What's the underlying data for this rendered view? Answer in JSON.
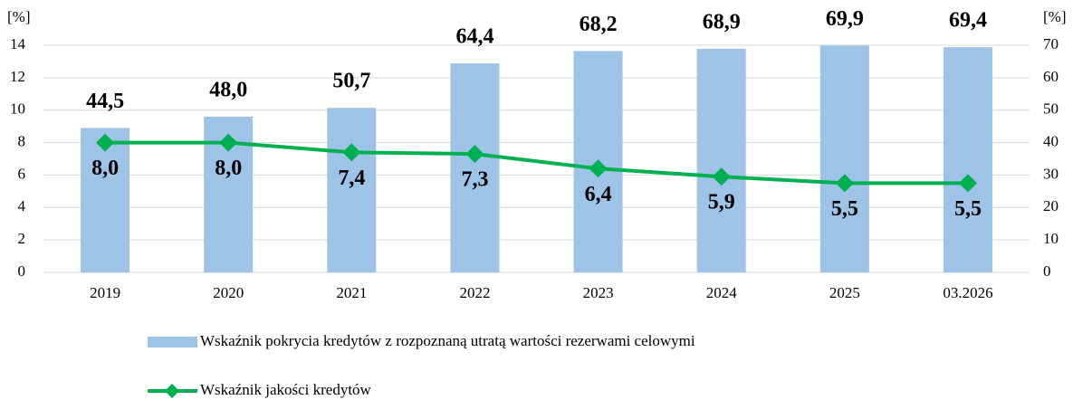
{
  "chart_data": {
    "type": "bar",
    "y_label": "[%]",
    "y2_label": "[%]",
    "categories": [
      "2019",
      "2020",
      "2021",
      "2022",
      "2023",
      "2024",
      "2025",
      "03.2026"
    ],
    "series": [
      {
        "name": "Wskaźnik pokrycia kredytów z rozpoznaną utratą wartości rezerwami celowymi",
        "type": "bar",
        "axis": "y2",
        "color": "#9dc3e6",
        "values": [
          44.5,
          48.0,
          50.7,
          64.4,
          68.2,
          68.9,
          69.9,
          69.4
        ],
        "value_labels": [
          "44,5",
          "48,0",
          "50,7",
          "64,4",
          "68,2",
          "68,9",
          "69,9",
          "69,4"
        ]
      },
      {
        "name": "Wskaźnik jakości kredytów",
        "type": "line",
        "axis": "y",
        "color": "#00b050",
        "values": [
          8.0,
          8.0,
          7.4,
          7.3,
          6.4,
          5.9,
          5.5,
          5.5
        ],
        "value_labels": [
          "8,0",
          "8,0",
          "7,4",
          "7,3",
          "6,4",
          "5,9",
          "5,5",
          "5,5"
        ]
      }
    ],
    "ylim": [
      0,
      14
    ],
    "yticks": [
      0,
      2,
      4,
      6,
      8,
      10,
      12,
      14
    ],
    "y2lim": [
      0,
      70
    ],
    "y2ticks": [
      0,
      10,
      20,
      30,
      40,
      50,
      60,
      70
    ],
    "grid": true
  }
}
